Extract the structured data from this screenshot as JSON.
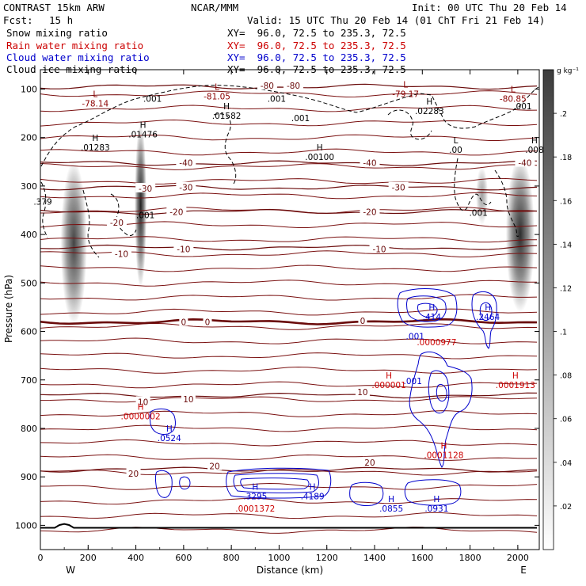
{
  "header": {
    "model": "CONTRAST 15km ARW",
    "center": "NCAR/MMM",
    "init": "Init: 00 UTC Thu 20 Feb 14",
    "fcst_label": "Fcst:",
    "fcst_value": "15 h",
    "valid": "Valid: 15 UTC Thu 20 Feb 14 (01 ChT Fri 21 Feb 14)"
  },
  "fields": [
    {
      "name": "Snow mixing ratio",
      "xy": "XY=  96.0, 72.5 to 235.3, 72.5",
      "color": "#000000"
    },
    {
      "name": "Rain water mixing ratio",
      "xy": "XY=  96.0, 72.5 to 235.3, 72.5",
      "color": "#cc0000"
    },
    {
      "name": "Cloud water mixing ratio",
      "xy": "XY=  96.0, 72.5 to 235.3, 72.5",
      "color": "#0000cc"
    },
    {
      "name": "Cloud ice mixing ratio",
      "xy": "XY=  96.0, 72.5 to 235.3, 72.5",
      "color": "#000000"
    }
  ],
  "chart_data": {
    "type": "contour",
    "xlabel": "Distance (km)",
    "ylabel": "Pressure (hPa)",
    "xlim": [
      0,
      2090
    ],
    "ylim": [
      1050,
      60
    ],
    "x_ticks": [
      0,
      200,
      400,
      600,
      800,
      1000,
      1200,
      1400,
      1600,
      1800,
      2000
    ],
    "y_ticks": [
      100,
      200,
      300,
      400,
      500,
      600,
      700,
      800,
      900,
      1000
    ],
    "end_labels": {
      "left": "W",
      "right": "E"
    },
    "colorbar": {
      "units": "g kg⁻¹",
      "ticks": [
        ".02",
        ".04",
        ".06",
        ".08",
        ".1",
        ".12",
        ".14",
        ".16",
        ".18",
        ".2"
      ],
      "range": [
        0,
        0.22
      ]
    },
    "temperature_isotherms": [
      {
        "value": -80,
        "p": 95
      },
      {
        "value": -40,
        "p": 253
      },
      {
        "value": -30,
        "p": 303
      },
      {
        "value": -20,
        "p": 353
      },
      {
        "value": -10,
        "p": 427
      },
      {
        "value": 0,
        "p": 580
      },
      {
        "value": 10,
        "p": 732
      },
      {
        "value": 20,
        "p": 885
      }
    ],
    "isotherm_labels": [
      {
        "text": "-80",
        "x": 950,
        "p": 93
      },
      {
        "text": "-80",
        "x": 1060,
        "p": 93
      },
      {
        "text": "-40",
        "x": 610,
        "p": 252
      },
      {
        "text": "-40",
        "x": 1380,
        "p": 252
      },
      {
        "text": "-40",
        "x": 2030,
        "p": 252
      },
      {
        "text": "-30",
        "x": 440,
        "p": 305
      },
      {
        "text": "-30",
        "x": 610,
        "p": 303
      },
      {
        "text": "-30",
        "x": 1500,
        "p": 303
      },
      {
        "text": "-20",
        "x": 320,
        "p": 375
      },
      {
        "text": "-20",
        "x": 570,
        "p": 353
      },
      {
        "text": "-20",
        "x": 1380,
        "p": 353
      },
      {
        "text": "-10",
        "x": 340,
        "p": 440
      },
      {
        "text": "-10",
        "x": 600,
        "p": 430
      },
      {
        "text": "-10",
        "x": 1420,
        "p": 430
      },
      {
        "text": "0",
        "x": 600,
        "p": 580
      },
      {
        "text": "0",
        "x": 700,
        "p": 580
      },
      {
        "text": "0",
        "x": 1350,
        "p": 578
      },
      {
        "text": "10",
        "x": 430,
        "p": 745
      },
      {
        "text": "10",
        "x": 620,
        "p": 740
      },
      {
        "text": "10",
        "x": 1350,
        "p": 725
      },
      {
        "text": "20",
        "x": 390,
        "p": 893
      },
      {
        "text": "20",
        "x": 730,
        "p": 878
      },
      {
        "text": "20",
        "x": 1380,
        "p": 870
      }
    ],
    "snow_shading": [
      {
        "x": 140,
        "p_top": 250,
        "p_bot": 585,
        "width": 110,
        "peak": 0.14
      },
      {
        "x": 420,
        "p_top": 170,
        "p_bot": 510,
        "width": 50,
        "peak": 0.17
      },
      {
        "x": 1850,
        "p_top": 260,
        "p_bot": 380,
        "width": 50,
        "peak": 0.06
      },
      {
        "x": 2010,
        "p_top": 240,
        "p_bot": 560,
        "width": 120,
        "peak": 0.16
      }
    ],
    "extrema_labels": [
      {
        "sym": "L",
        "val": "-78.14",
        "x": 230,
        "p": 120,
        "color": "#8b0000"
      },
      {
        "sym": "L",
        "val": "-81.05",
        "x": 740,
        "p": 105,
        "color": "#8b0000"
      },
      {
        "sym": "L",
        "val": "-79.17",
        "x": 1530,
        "p": 100,
        "color": "#8b0000"
      },
      {
        "sym": "L",
        "val": "-80.85",
        "x": 1980,
        "p": 110,
        "color": "#8b0000"
      },
      {
        "sym": "",
        "val": ".001",
        "x": 470,
        "p": 110,
        "color": "#000000"
      },
      {
        "sym": "",
        "val": ".001",
        "x": 990,
        "p": 110,
        "color": "#000000"
      },
      {
        "sym": "",
        "val": ".001",
        "x": 1090,
        "p": 150,
        "color": "#000000"
      },
      {
        "sym": "",
        "val": ".001",
        "x": 2020,
        "p": 125,
        "color": "#000000"
      },
      {
        "sym": "H",
        "val": ".01582",
        "x": 780,
        "p": 145,
        "color": "#000000"
      },
      {
        "sym": "H",
        "val": ".02283",
        "x": 1630,
        "p": 135,
        "color": "#000000"
      },
      {
        "sym": "H",
        "val": ".01476",
        "x": 430,
        "p": 183,
        "color": "#000000"
      },
      {
        "sym": "H",
        "val": ".01283",
        "x": 230,
        "p": 210,
        "color": "#000000"
      },
      {
        "sym": "H",
        "val": ".00100",
        "x": 1170,
        "p": 230,
        "color": "#000000"
      },
      {
        "sym": "L",
        "val": ".00",
        "x": 1740,
        "p": 215,
        "color": "#000000"
      },
      {
        "sym": "H",
        "val": ".008",
        "x": 2070,
        "p": 215,
        "color": "#000000"
      },
      {
        "sym": "",
        "val": ".379",
        "x": 10,
        "p": 322,
        "color": "#000000"
      },
      {
        "sym": "",
        "val": ".001",
        "x": 440,
        "p": 350,
        "color": "#000000"
      },
      {
        "sym": "",
        "val": ".001",
        "x": 1835,
        "p": 345,
        "color": "#000000"
      },
      {
        "sym": "H",
        "val": ".414",
        "x": 1640,
        "p": 560,
        "color": "#0000cc"
      },
      {
        "sym": "H",
        "val": ".2464",
        "x": 1875,
        "p": 560,
        "color": "#0000cc"
      },
      {
        "sym": "",
        "val": ".001",
        "x": 1570,
        "p": 600,
        "color": "#0000cc"
      },
      {
        "sym": "",
        "val": ".0000977",
        "x": 1660,
        "p": 612,
        "color": "#cc0000"
      },
      {
        "sym": "H",
        "val": ".000001",
        "x": 1460,
        "p": 700,
        "color": "#cc0000"
      },
      {
        "sym": "",
        "val": ".001",
        "x": 1560,
        "p": 692,
        "color": "#0000cc"
      },
      {
        "sym": "H",
        "val": ".0001913",
        "x": 1990,
        "p": 700,
        "color": "#cc0000"
      },
      {
        "sym": "H",
        "val": ".0000002",
        "x": 420,
        "p": 765,
        "color": "#cc0000"
      },
      {
        "sym": "H",
        "val": ".0524",
        "x": 540,
        "p": 810,
        "color": "#0000cc"
      },
      {
        "sym": "H",
        "val": ".0001128",
        "x": 1690,
        "p": 845,
        "color": "#cc0000"
      },
      {
        "sym": "H",
        "val": ".3295",
        "x": 900,
        "p": 930,
        "color": "#0000cc"
      },
      {
        "sym": "H",
        "val": ".4189",
        "x": 1140,
        "p": 930,
        "color": "#0000cc"
      },
      {
        "sym": "",
        "val": ".0001372",
        "x": 900,
        "p": 955,
        "color": "#cc0000"
      },
      {
        "sym": "H",
        "val": ".0855",
        "x": 1470,
        "p": 955,
        "color": "#0000cc"
      },
      {
        "sym": "H",
        "val": ".0931",
        "x": 1660,
        "p": 955,
        "color": "#0000cc"
      }
    ]
  }
}
